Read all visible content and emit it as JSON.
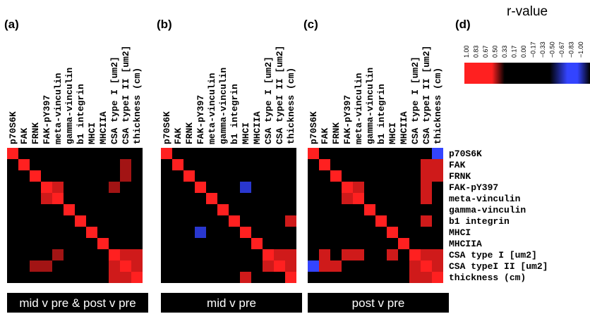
{
  "chart_data": {
    "type": "heatmap",
    "variables": [
      "p70S6K",
      "FAK",
      "FRNK",
      "FAK-pY397",
      "meta-vinculin",
      "gamma-vinculin",
      "b1 integrin",
      "MHCI",
      "MHCIIA",
      "CSA type I [um2]",
      "CSA typeI II [um2]",
      "thickness (cm)"
    ],
    "panels": [
      {
        "letter": "(a)",
        "caption": "mid v pre & post v pre",
        "cells": [
          {
            "r": 0,
            "c": 0,
            "v": 1.0
          },
          {
            "r": 1,
            "c": 1,
            "v": 1.0
          },
          {
            "r": 2,
            "c": 2,
            "v": 1.0
          },
          {
            "r": 3,
            "c": 3,
            "v": 1.0
          },
          {
            "r": 4,
            "c": 4,
            "v": 1.0
          },
          {
            "r": 5,
            "c": 5,
            "v": 1.0
          },
          {
            "r": 6,
            "c": 6,
            "v": 1.0
          },
          {
            "r": 7,
            "c": 7,
            "v": 1.0
          },
          {
            "r": 8,
            "c": 8,
            "v": 1.0
          },
          {
            "r": 9,
            "c": 9,
            "v": 1.0
          },
          {
            "r": 10,
            "c": 10,
            "v": 1.0
          },
          {
            "r": 11,
            "c": 11,
            "v": 1.0
          },
          {
            "r": 3,
            "c": 4,
            "v": 0.83
          },
          {
            "r": 4,
            "c": 3,
            "v": 0.83
          },
          {
            "r": 1,
            "c": 10,
            "v": 0.67
          },
          {
            "r": 2,
            "c": 10,
            "v": 0.67
          },
          {
            "r": 3,
            "c": 9,
            "v": 0.67
          },
          {
            "r": 9,
            "c": 10,
            "v": 0.83
          },
          {
            "r": 10,
            "c": 9,
            "v": 0.83
          },
          {
            "r": 9,
            "c": 11,
            "v": 0.83
          },
          {
            "r": 11,
            "c": 9,
            "v": 0.83
          },
          {
            "r": 10,
            "c": 11,
            "v": 0.83
          },
          {
            "r": 11,
            "c": 10,
            "v": 0.83
          },
          {
            "r": 9,
            "c": 4,
            "v": 0.67
          },
          {
            "r": 10,
            "c": 2,
            "v": 0.67
          },
          {
            "r": 10,
            "c": 3,
            "v": 0.67
          }
        ]
      },
      {
        "letter": "(b)",
        "caption": "mid v pre",
        "cells": [
          {
            "r": 0,
            "c": 0,
            "v": 1.0
          },
          {
            "r": 1,
            "c": 1,
            "v": 1.0
          },
          {
            "r": 2,
            "c": 2,
            "v": 1.0
          },
          {
            "r": 3,
            "c": 3,
            "v": 1.0
          },
          {
            "r": 4,
            "c": 4,
            "v": 1.0
          },
          {
            "r": 5,
            "c": 5,
            "v": 1.0
          },
          {
            "r": 6,
            "c": 6,
            "v": 1.0
          },
          {
            "r": 7,
            "c": 7,
            "v": 1.0
          },
          {
            "r": 8,
            "c": 8,
            "v": 1.0
          },
          {
            "r": 9,
            "c": 9,
            "v": 1.0
          },
          {
            "r": 10,
            "c": 10,
            "v": 1.0
          },
          {
            "r": 11,
            "c": 11,
            "v": 1.0
          },
          {
            "r": 3,
            "c": 7,
            "v": -0.83
          },
          {
            "r": 7,
            "c": 3,
            "v": -0.83
          },
          {
            "r": 6,
            "c": 11,
            "v": 0.83
          },
          {
            "r": 9,
            "c": 10,
            "v": 0.83
          },
          {
            "r": 10,
            "c": 9,
            "v": 0.83
          },
          {
            "r": 9,
            "c": 11,
            "v": 0.83
          },
          {
            "r": 10,
            "c": 11,
            "v": 0.83
          },
          {
            "r": 11,
            "c": 7,
            "v": 0.83
          }
        ]
      },
      {
        "letter": "(c)",
        "caption": "post v pre",
        "cells": [
          {
            "r": 0,
            "c": 0,
            "v": 1.0
          },
          {
            "r": 1,
            "c": 1,
            "v": 1.0
          },
          {
            "r": 2,
            "c": 2,
            "v": 1.0
          },
          {
            "r": 3,
            "c": 3,
            "v": 1.0
          },
          {
            "r": 4,
            "c": 4,
            "v": 1.0
          },
          {
            "r": 5,
            "c": 5,
            "v": 1.0
          },
          {
            "r": 6,
            "c": 6,
            "v": 1.0
          },
          {
            "r": 7,
            "c": 7,
            "v": 1.0
          },
          {
            "r": 8,
            "c": 8,
            "v": 1.0
          },
          {
            "r": 9,
            "c": 9,
            "v": 1.0
          },
          {
            "r": 10,
            "c": 10,
            "v": 1.0
          },
          {
            "r": 11,
            "c": 11,
            "v": 1.0
          },
          {
            "r": 0,
            "c": 11,
            "v": -1.0
          },
          {
            "r": 10,
            "c": 0,
            "v": -1.0
          },
          {
            "r": 1,
            "c": 10,
            "v": 0.83
          },
          {
            "r": 2,
            "c": 10,
            "v": 0.83
          },
          {
            "r": 3,
            "c": 10,
            "v": 0.83
          },
          {
            "r": 1,
            "c": 11,
            "v": 0.83
          },
          {
            "r": 2,
            "c": 11,
            "v": 0.83
          },
          {
            "r": 3,
            "c": 4,
            "v": 0.83
          },
          {
            "r": 4,
            "c": 3,
            "v": 0.83
          },
          {
            "r": 4,
            "c": 10,
            "v": 0.83
          },
          {
            "r": 6,
            "c": 10,
            "v": 0.83
          },
          {
            "r": 9,
            "c": 1,
            "v": 0.83
          },
          {
            "r": 9,
            "c": 3,
            "v": 0.83
          },
          {
            "r": 9,
            "c": 4,
            "v": 0.83
          },
          {
            "r": 9,
            "c": 7,
            "v": 0.83
          },
          {
            "r": 10,
            "c": 1,
            "v": 0.83
          },
          {
            "r": 10,
            "c": 2,
            "v": 0.83
          },
          {
            "r": 9,
            "c": 10,
            "v": 0.83
          },
          {
            "r": 10,
            "c": 9,
            "v": 0.83
          },
          {
            "r": 9,
            "c": 11,
            "v": 0.83
          },
          {
            "r": 11,
            "c": 9,
            "v": 0.83
          },
          {
            "r": 10,
            "c": 11,
            "v": 0.83
          },
          {
            "r": 11,
            "c": 10,
            "v": 0.83
          }
        ]
      }
    ],
    "legend": {
      "letter": "(d)",
      "title": "r-value",
      "ticks": [
        "1.00",
        "0.83",
        "0.67",
        "0.50",
        "0.33",
        "0.17",
        "0.00",
        "−0.17",
        "−0.33",
        "−0.50",
        "−0.67",
        "−0.83",
        "−1.00"
      ],
      "range": [
        -1,
        1
      ],
      "colors": {
        "positive": "#ff2020",
        "zero": "#000000",
        "negative": "#3344ff"
      }
    }
  }
}
